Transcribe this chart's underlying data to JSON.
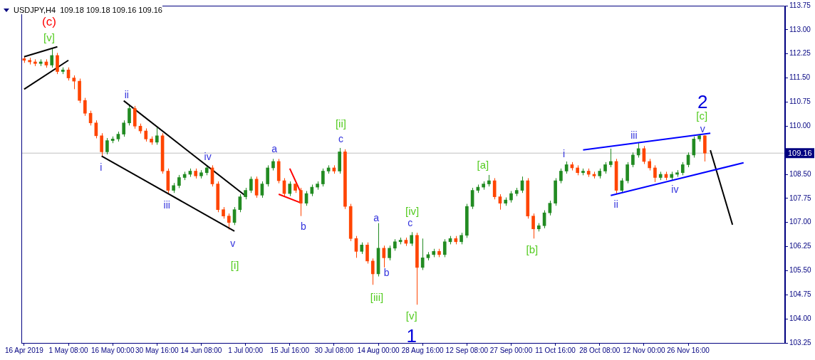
{
  "chart_data": {
    "type": "candlestick",
    "title": "USDJPY,H4  109.18 109.18 109.16 109.16",
    "categories": [
      "16 Apr 2019",
      null,
      null,
      null,
      null,
      null,
      null,
      null,
      "1 May 08:00",
      null,
      null,
      null,
      null,
      null,
      null,
      null,
      "16 May 00:00",
      null,
      null,
      null,
      null,
      null,
      null,
      null,
      "30 May 16:00",
      null,
      null,
      null,
      null,
      null,
      null,
      null,
      "14 Jun 08:00",
      null,
      null,
      null,
      null,
      null,
      null,
      null,
      "1 Jul 00:00",
      null,
      null,
      null,
      null,
      null,
      null,
      null,
      "15 Jul 16:00",
      null,
      null,
      null,
      null,
      null,
      null,
      null,
      "30 Jul 08:00",
      null,
      null,
      null,
      null,
      null,
      null,
      null,
      "14 Aug 00:00",
      null,
      null,
      null,
      null,
      null,
      null,
      null,
      "28 Aug 16:00",
      null,
      null,
      null,
      null,
      null,
      null,
      null,
      "12 Sep 08:00",
      null,
      null,
      null,
      null,
      null,
      null,
      null,
      "27 Sep 00:00",
      null,
      null,
      null,
      null,
      null,
      null,
      null,
      "11 Oct 16:00",
      null,
      null,
      null,
      null,
      null,
      null,
      null,
      "28 Oct 08:00",
      null,
      null,
      null,
      null,
      null,
      null,
      null,
      "12 Nov 00:00",
      null,
      null,
      null,
      null,
      null,
      null,
      null,
      "26 Nov 16:00",
      null,
      null,
      null,
      null,
      null,
      null,
      null,
      null,
      null,
      null,
      null,
      null,
      null,
      null,
      null,
      null,
      null
    ],
    "ohlc": [
      [
        112.1,
        112.18,
        111.97,
        112.05
      ],
      [
        112.05,
        112.13,
        111.92,
        112.0
      ],
      [
        112.0,
        112.08,
        111.87,
        111.95
      ],
      [
        111.95,
        112.08,
        111.87,
        112.0
      ],
      [
        112.0,
        112.08,
        111.82,
        111.9
      ],
      [
        111.9,
        112.4,
        111.82,
        112.2
      ],
      [
        112.2,
        112.28,
        111.62,
        111.7
      ],
      [
        111.7,
        111.83,
        111.62,
        111.75
      ],
      [
        111.75,
        111.83,
        111.42,
        111.5
      ],
      [
        111.5,
        111.58,
        111.15,
        111.4
      ],
      [
        111.4,
        111.48,
        110.72,
        110.8
      ],
      [
        110.8,
        110.88,
        110.32,
        110.4
      ],
      [
        110.4,
        110.48,
        110.02,
        110.1
      ],
      [
        110.1,
        110.18,
        109.62,
        109.7
      ],
      [
        109.7,
        109.78,
        109.07,
        109.2
      ],
      [
        109.2,
        109.63,
        109.12,
        109.55
      ],
      [
        109.55,
        109.68,
        109.47,
        109.6
      ],
      [
        109.6,
        109.83,
        109.52,
        109.75
      ],
      [
        109.75,
        110.18,
        109.67,
        110.1
      ],
      [
        110.1,
        110.68,
        110.02,
        110.55
      ],
      [
        110.55,
        110.63,
        109.92,
        110.0
      ],
      [
        110.0,
        110.08,
        109.77,
        109.85
      ],
      [
        109.85,
        109.93,
        109.52,
        109.6
      ],
      [
        109.6,
        109.68,
        109.42,
        109.5
      ],
      [
        109.5,
        109.95,
        109.42,
        109.7
      ],
      [
        109.7,
        109.78,
        108.52,
        108.6
      ],
      [
        108.6,
        108.68,
        107.88,
        108.0
      ],
      [
        108.0,
        108.23,
        107.92,
        108.15
      ],
      [
        108.15,
        108.48,
        108.07,
        108.4
      ],
      [
        108.4,
        108.58,
        108.32,
        108.5
      ],
      [
        108.5,
        108.68,
        108.42,
        108.6
      ],
      [
        108.6,
        108.68,
        108.37,
        108.45
      ],
      [
        108.45,
        108.63,
        108.37,
        108.55
      ],
      [
        108.55,
        108.78,
        108.47,
        108.7
      ],
      [
        108.7,
        108.78,
        108.12,
        108.2
      ],
      [
        108.2,
        108.28,
        107.32,
        107.4
      ],
      [
        107.4,
        107.48,
        107.12,
        107.2
      ],
      [
        107.2,
        107.28,
        106.78,
        107.0
      ],
      [
        107.0,
        107.48,
        106.92,
        107.4
      ],
      [
        107.4,
        107.88,
        107.32,
        107.8
      ],
      [
        107.8,
        108.08,
        107.72,
        108.0
      ],
      [
        108.0,
        108.43,
        107.92,
        108.35
      ],
      [
        108.35,
        108.43,
        107.77,
        107.85
      ],
      [
        107.85,
        108.28,
        107.77,
        108.2
      ],
      [
        108.2,
        108.78,
        108.12,
        108.7
      ],
      [
        108.7,
        108.98,
        108.62,
        108.9
      ],
      [
        108.9,
        108.98,
        108.22,
        108.3
      ],
      [
        108.3,
        108.38,
        107.82,
        107.9
      ],
      [
        107.9,
        108.28,
        107.82,
        108.2
      ],
      [
        108.2,
        108.28,
        107.92,
        108.0
      ],
      [
        108.0,
        108.08,
        107.2,
        107.6
      ],
      [
        107.6,
        107.98,
        107.52,
        107.9
      ],
      [
        107.9,
        108.18,
        107.82,
        108.1
      ],
      [
        108.1,
        108.28,
        108.02,
        108.2
      ],
      [
        108.2,
        108.68,
        108.12,
        108.6
      ],
      [
        108.6,
        108.78,
        108.52,
        108.7
      ],
      [
        108.7,
        108.78,
        108.52,
        108.6
      ],
      [
        108.6,
        109.32,
        108.52,
        109.2
      ],
      [
        109.2,
        109.28,
        107.42,
        107.5
      ],
      [
        107.5,
        107.58,
        106.42,
        106.5
      ],
      [
        106.5,
        106.58,
        105.9,
        106.1
      ],
      [
        106.1,
        106.38,
        106.02,
        106.3
      ],
      [
        106.3,
        106.38,
        105.72,
        105.8
      ],
      [
        105.8,
        105.88,
        105.06,
        105.4
      ],
      [
        105.4,
        106.98,
        105.32,
        106.2
      ],
      [
        106.2,
        106.28,
        105.6,
        105.9
      ],
      [
        105.9,
        106.28,
        105.82,
        106.2
      ],
      [
        106.2,
        106.48,
        106.12,
        106.4
      ],
      [
        106.4,
        106.53,
        106.32,
        106.45
      ],
      [
        106.45,
        106.53,
        106.27,
        106.35
      ],
      [
        106.35,
        106.7,
        106.27,
        106.6
      ],
      [
        106.6,
        106.68,
        104.44,
        105.6
      ],
      [
        105.6,
        106.5,
        105.52,
        105.9
      ],
      [
        105.9,
        106.08,
        105.82,
        106.0
      ],
      [
        106.0,
        106.18,
        105.92,
        106.1
      ],
      [
        106.1,
        106.18,
        105.92,
        106.0
      ],
      [
        106.0,
        106.48,
        105.92,
        106.4
      ],
      [
        106.4,
        106.58,
        106.32,
        106.5
      ],
      [
        106.5,
        106.58,
        106.32,
        106.4
      ],
      [
        106.4,
        106.68,
        106.32,
        106.6
      ],
      [
        106.6,
        107.58,
        106.52,
        107.5
      ],
      [
        107.5,
        108.08,
        107.42,
        108.0
      ],
      [
        108.0,
        108.18,
        107.92,
        108.1
      ],
      [
        108.1,
        108.28,
        108.02,
        108.2
      ],
      [
        108.2,
        108.48,
        108.12,
        108.3
      ],
      [
        108.3,
        108.38,
        107.72,
        107.8
      ],
      [
        107.8,
        107.88,
        107.4,
        107.6
      ],
      [
        107.6,
        107.78,
        107.52,
        107.7
      ],
      [
        107.7,
        107.98,
        107.62,
        107.9
      ],
      [
        107.9,
        108.08,
        107.82,
        108.0
      ],
      [
        108.0,
        108.43,
        107.92,
        108.3
      ],
      [
        108.3,
        108.38,
        107.12,
        107.2
      ],
      [
        107.2,
        107.28,
        106.5,
        106.8
      ],
      [
        106.8,
        106.98,
        106.72,
        106.9
      ],
      [
        106.9,
        107.38,
        106.82,
        107.3
      ],
      [
        107.3,
        107.68,
        107.22,
        107.6
      ],
      [
        107.6,
        108.38,
        107.52,
        108.3
      ],
      [
        108.3,
        108.68,
        108.22,
        108.6
      ],
      [
        108.6,
        108.9,
        108.52,
        108.8
      ],
      [
        108.8,
        108.88,
        108.62,
        108.7
      ],
      [
        108.7,
        108.78,
        108.47,
        108.55
      ],
      [
        108.55,
        108.68,
        108.47,
        108.6
      ],
      [
        108.6,
        108.68,
        108.42,
        108.5
      ],
      [
        108.5,
        108.58,
        108.37,
        108.45
      ],
      [
        108.45,
        108.68,
        108.37,
        108.6
      ],
      [
        108.6,
        108.88,
        108.52,
        108.8
      ],
      [
        108.8,
        109.3,
        108.72,
        108.9
      ],
      [
        108.9,
        108.98,
        107.88,
        108.0
      ],
      [
        108.0,
        108.38,
        107.92,
        108.3
      ],
      [
        108.3,
        108.88,
        108.22,
        108.8
      ],
      [
        108.8,
        109.18,
        108.72,
        109.1
      ],
      [
        109.1,
        109.47,
        109.02,
        109.3
      ],
      [
        109.3,
        109.38,
        108.82,
        108.9
      ],
      [
        108.9,
        108.98,
        108.62,
        108.7
      ],
      [
        108.7,
        108.78,
        108.26,
        108.4
      ],
      [
        108.4,
        108.58,
        108.32,
        108.5
      ],
      [
        108.5,
        108.58,
        108.32,
        108.4
      ],
      [
        108.4,
        108.58,
        108.32,
        108.5
      ],
      [
        108.5,
        108.63,
        108.42,
        108.55
      ],
      [
        108.55,
        108.88,
        108.47,
        108.8
      ],
      [
        108.8,
        109.18,
        108.72,
        109.1
      ],
      [
        109.1,
        109.68,
        109.02,
        109.6
      ],
      [
        109.6,
        109.74,
        109.52,
        109.7
      ],
      [
        109.7,
        109.72,
        108.9,
        109.16
      ],
      null,
      null,
      null,
      null,
      null,
      null,
      null,
      null,
      null,
      null,
      null,
      null,
      null,
      null
    ],
    "colors": [
      "#ff4500",
      "#ff4500",
      "#ff4500",
      "#228b22",
      "#ff4500",
      "#228b22",
      "#ff4500",
      "#228b22",
      "#ff4500",
      "#ff4500",
      "#ff4500",
      "#ff4500",
      "#ff4500",
      "#ff4500",
      "#ff4500",
      "#228b22",
      "#228b22",
      "#228b22",
      "#228b22",
      "#228b22",
      "#ff4500",
      "#ff4500",
      "#ff4500",
      "#ff4500",
      "#228b22",
      "#ff4500",
      "#ff4500",
      "#228b22",
      "#228b22",
      "#228b22",
      "#228b22",
      "#ff4500",
      "#228b22",
      "#228b22",
      "#ff4500",
      "#ff4500",
      "#ff4500",
      "#ff4500",
      "#228b22",
      "#228b22",
      "#228b22",
      "#228b22",
      "#ff4500",
      "#228b22",
      "#228b22",
      "#228b22",
      "#ff4500",
      "#ff4500",
      "#228b22",
      "#ff4500",
      "#ff4500",
      "#228b22",
      "#228b22",
      "#228b22",
      "#228b22",
      "#228b22",
      "#ff4500",
      "#228b22",
      "#ff4500",
      "#ff4500",
      "#ff4500",
      "#228b22",
      "#ff4500",
      "#ff4500",
      "#228b22",
      "#ff4500",
      "#228b22",
      "#228b22",
      "#228b22",
      "#ff4500",
      "#228b22",
      "#ff4500",
      "#228b22",
      "#228b22",
      "#228b22",
      "#ff4500",
      "#228b22",
      "#228b22",
      "#ff4500",
      "#228b22",
      "#228b22",
      "#228b22",
      "#228b22",
      "#228b22",
      "#228b22",
      "#ff4500",
      "#ff4500",
      "#228b22",
      "#228b22",
      "#228b22",
      "#228b22",
      "#ff4500",
      "#ff4500",
      "#228b22",
      "#228b22",
      "#228b22",
      "#228b22",
      "#228b22",
      "#228b22",
      "#ff4500",
      "#ff4500",
      "#228b22",
      "#ff4500",
      "#ff4500",
      "#228b22",
      "#228b22",
      "#228b22",
      "#ff4500",
      "#228b22",
      "#228b22",
      "#228b22",
      "#228b22",
      "#ff4500",
      "#ff4500",
      "#ff4500",
      "#228b22",
      "#ff4500",
      "#228b22",
      "#228b22",
      "#228b22",
      "#228b22",
      "#228b22",
      "#228b22",
      "#ff4500",
      null,
      null,
      null,
      null,
      null,
      null,
      null,
      null,
      null,
      null,
      null,
      null,
      null,
      null
    ],
    "series": [
      {
        "type": "line",
        "color": "#000000",
        "values": [
          112.16,
          null,
          null,
          null,
          null,
          null,
          112.47,
          null,
          null,
          null,
          null,
          null,
          null,
          null,
          null,
          null,
          null,
          null,
          null,
          null,
          null,
          null,
          null,
          null,
          null,
          null,
          null,
          null,
          null,
          null,
          null,
          null,
          null,
          null,
          null,
          null,
          null,
          null,
          null,
          null,
          null,
          null,
          null,
          null,
          null,
          null,
          null,
          null,
          null,
          null,
          null,
          null,
          null,
          null,
          null,
          null,
          null,
          null,
          null,
          null,
          null,
          null,
          null,
          null,
          null,
          null,
          null,
          null,
          null,
          null,
          null,
          null,
          null,
          null,
          null,
          null,
          null,
          null,
          null,
          null,
          null,
          null,
          null,
          null,
          null,
          null,
          null,
          null,
          null,
          null,
          null,
          null,
          null,
          null,
          null,
          null,
          null,
          null,
          null,
          null,
          null,
          null,
          null,
          null,
          null,
          null,
          null,
          null,
          null,
          null,
          null,
          null,
          null,
          null,
          null,
          null,
          null,
          null,
          null,
          null,
          null,
          null,
          null,
          null,
          null,
          null,
          null,
          null,
          null,
          null,
          null,
          null,
          null,
          null,
          null,
          null,
          null,
          null
        ]
      },
      {
        "type": "line",
        "color": "#000000",
        "values": [
          111.15,
          null,
          null,
          null,
          null,
          null,
          null,
          null,
          112.05,
          null,
          null,
          null,
          null,
          null,
          null,
          null,
          null,
          null,
          null,
          null,
          null,
          null,
          null,
          null,
          null,
          null,
          null,
          null,
          null,
          null,
          null,
          null,
          null,
          null,
          null,
          null,
          null,
          null,
          null,
          null,
          null,
          null,
          null,
          null,
          null,
          null,
          null,
          null,
          null,
          null,
          null,
          null,
          null,
          null,
          null,
          null,
          null,
          null,
          null,
          null,
          null,
          null,
          null,
          null,
          null,
          null,
          null,
          null,
          null,
          null,
          null,
          null,
          null,
          null,
          null,
          null,
          null,
          null,
          null,
          null,
          null,
          null,
          null,
          null,
          null,
          null,
          null,
          null,
          null,
          null,
          null,
          null,
          null,
          null,
          null,
          null,
          null,
          null,
          null,
          null,
          null,
          null,
          null,
          null,
          null,
          null,
          null,
          null,
          null,
          null,
          null,
          null,
          null,
          null,
          null,
          null,
          null,
          null,
          null,
          null,
          null,
          null,
          null,
          null,
          null,
          null,
          null,
          null,
          null,
          null,
          null,
          null,
          null,
          null,
          null,
          null,
          null,
          null
        ]
      },
      {
        "type": "line",
        "color": "#000000",
        "values": [
          null,
          null,
          null,
          null,
          null,
          null,
          null,
          null,
          null,
          null,
          null,
          null,
          null,
          null,
          null,
          null,
          null,
          null,
          110.79,
          null,
          null,
          null,
          null,
          null,
          null,
          null,
          null,
          null,
          null,
          null,
          null,
          null,
          null,
          null,
          null,
          null,
          null,
          null,
          null,
          null,
          107.83,
          null,
          null,
          null,
          null,
          null,
          null,
          null,
          null,
          null,
          null,
          null,
          null,
          null,
          null,
          null,
          null,
          null,
          null,
          null,
          null,
          null,
          null,
          null,
          null,
          null,
          null,
          null,
          null,
          null,
          null,
          null,
          null,
          null,
          null,
          null,
          null,
          null,
          null,
          null,
          null,
          null,
          null,
          null,
          null,
          null,
          null,
          null,
          null,
          null,
          null,
          null,
          null,
          null,
          null,
          null,
          null,
          null,
          null,
          null,
          null,
          null,
          null,
          null,
          null,
          null,
          null,
          null,
          null,
          null,
          null,
          null,
          null,
          null,
          null,
          null,
          null,
          null,
          null,
          null,
          null,
          null,
          null,
          null,
          null,
          null,
          null,
          null,
          null,
          null,
          null,
          null,
          null,
          null,
          null,
          null,
          null,
          null
        ]
      },
      {
        "type": "line",
        "color": "#000000",
        "values": [
          null,
          null,
          null,
          null,
          null,
          null,
          null,
          null,
          null,
          null,
          null,
          null,
          null,
          null,
          109.07,
          null,
          null,
          null,
          null,
          null,
          null,
          null,
          null,
          null,
          null,
          null,
          null,
          null,
          null,
          null,
          null,
          null,
          null,
          null,
          null,
          null,
          null,
          null,
          106.73,
          null,
          null,
          null,
          null,
          null,
          null,
          null,
          null,
          null,
          null,
          null,
          null,
          null,
          null,
          null,
          null,
          null,
          null,
          null,
          null,
          null,
          null,
          null,
          null,
          null,
          null,
          null,
          null,
          null,
          null,
          null,
          null,
          null,
          null,
          null,
          null,
          null,
          null,
          null,
          null,
          null,
          null,
          null,
          null,
          null,
          null,
          null,
          null,
          null,
          null,
          null,
          null,
          null,
          null,
          null,
          null,
          null,
          null,
          null,
          null,
          null,
          null,
          null,
          null,
          null,
          null,
          null,
          null,
          null,
          null,
          null,
          null,
          null,
          null,
          null,
          null,
          null,
          null,
          null,
          null,
          null,
          null,
          null,
          null,
          null,
          null,
          null,
          null,
          null,
          null,
          null,
          null,
          null,
          null,
          null,
          null,
          null,
          null,
          null
        ]
      },
      {
        "type": "line",
        "color": "#ff0000",
        "values": [
          null,
          null,
          null,
          null,
          null,
          null,
          null,
          null,
          null,
          null,
          null,
          null,
          null,
          null,
          null,
          null,
          null,
          null,
          null,
          null,
          null,
          null,
          null,
          null,
          null,
          null,
          null,
          null,
          null,
          null,
          null,
          null,
          null,
          null,
          null,
          null,
          null,
          null,
          null,
          null,
          null,
          null,
          null,
          null,
          null,
          null,
          107.88,
          null,
          null,
          null,
          107.61,
          null,
          null,
          null,
          null,
          null,
          null,
          null,
          null,
          null,
          null,
          null,
          null,
          null,
          null,
          null,
          null,
          null,
          null,
          null,
          null,
          null,
          null,
          null,
          null,
          null,
          null,
          null,
          null,
          null,
          null,
          null,
          null,
          null,
          null,
          null,
          null,
          null,
          null,
          null,
          null,
          null,
          null,
          null,
          null,
          null,
          null,
          null,
          null,
          null,
          null,
          null,
          null,
          null,
          null,
          null,
          null,
          null,
          null,
          null,
          null,
          null,
          null,
          null,
          null,
          null,
          null,
          null,
          null,
          null,
          null,
          null,
          null,
          null,
          null,
          null,
          null,
          null,
          null,
          null,
          null,
          null,
          null,
          null,
          null,
          null,
          null,
          null
        ]
      },
      {
        "type": "line",
        "color": "#ff0000",
        "values": [
          null,
          null,
          null,
          null,
          null,
          null,
          null,
          null,
          null,
          null,
          null,
          null,
          null,
          null,
          null,
          null,
          null,
          null,
          null,
          null,
          null,
          null,
          null,
          null,
          null,
          null,
          null,
          null,
          null,
          null,
          null,
          null,
          null,
          null,
          null,
          null,
          null,
          null,
          null,
          null,
          null,
          null,
          null,
          null,
          null,
          null,
          null,
          null,
          108.68,
          null,
          107.93,
          null,
          null,
          null,
          null,
          null,
          null,
          null,
          null,
          null,
          null,
          null,
          null,
          null,
          null,
          null,
          null,
          null,
          null,
          null,
          null,
          null,
          null,
          null,
          null,
          null,
          null,
          null,
          null,
          null,
          null,
          null,
          null,
          null,
          null,
          null,
          null,
          null,
          null,
          null,
          null,
          null,
          null,
          null,
          null,
          null,
          null,
          null,
          null,
          null,
          null,
          null,
          null,
          null,
          null,
          null,
          null,
          null,
          null,
          null,
          null,
          null,
          null,
          null,
          null,
          null,
          null,
          null,
          null,
          null,
          null,
          null,
          null,
          null,
          null,
          null,
          null,
          null,
          null,
          null,
          null,
          null,
          null,
          null,
          null,
          null,
          null,
          null
        ]
      },
      {
        "type": "line",
        "color": "#0000ff",
        "values": [
          null,
          null,
          null,
          null,
          null,
          null,
          null,
          null,
          null,
          null,
          null,
          null,
          null,
          null,
          null,
          null,
          null,
          null,
          null,
          null,
          null,
          null,
          null,
          null,
          null,
          null,
          null,
          null,
          null,
          null,
          null,
          null,
          null,
          null,
          null,
          null,
          null,
          null,
          null,
          null,
          null,
          null,
          null,
          null,
          null,
          null,
          null,
          null,
          null,
          null,
          null,
          null,
          null,
          null,
          null,
          null,
          null,
          null,
          null,
          null,
          null,
          null,
          null,
          null,
          null,
          null,
          null,
          null,
          null,
          null,
          null,
          null,
          null,
          null,
          null,
          null,
          null,
          null,
          null,
          null,
          null,
          null,
          null,
          null,
          null,
          null,
          null,
          null,
          null,
          null,
          null,
          null,
          null,
          null,
          null,
          null,
          null,
          null,
          null,
          null,
          null,
          109.26,
          null,
          null,
          null,
          null,
          null,
          null,
          null,
          null,
          null,
          null,
          null,
          null,
          null,
          null,
          null,
          null,
          null,
          null,
          null,
          null,
          null,
          null,
          109.78,
          null,
          null,
          null,
          null,
          null,
          null,
          null,
          null,
          null,
          null,
          null,
          null,
          null
        ]
      },
      {
        "type": "line",
        "color": "#0000ff",
        "values": [
          null,
          null,
          null,
          null,
          null,
          null,
          null,
          null,
          null,
          null,
          null,
          null,
          null,
          null,
          null,
          null,
          null,
          null,
          null,
          null,
          null,
          null,
          null,
          null,
          null,
          null,
          null,
          null,
          null,
          null,
          null,
          null,
          null,
          null,
          null,
          null,
          null,
          null,
          null,
          null,
          null,
          null,
          null,
          null,
          null,
          null,
          null,
          null,
          null,
          null,
          null,
          null,
          null,
          null,
          null,
          null,
          null,
          null,
          null,
          null,
          null,
          null,
          null,
          null,
          null,
          null,
          null,
          null,
          null,
          null,
          null,
          null,
          null,
          null,
          null,
          null,
          null,
          null,
          null,
          null,
          null,
          null,
          null,
          null,
          null,
          null,
          null,
          null,
          null,
          null,
          null,
          null,
          null,
          null,
          null,
          null,
          null,
          null,
          null,
          null,
          null,
          null,
          null,
          null,
          null,
          null,
          107.84,
          null,
          null,
          null,
          null,
          null,
          null,
          null,
          null,
          null,
          null,
          null,
          null,
          null,
          null,
          null,
          null,
          null,
          null,
          null,
          null,
          null,
          null,
          null,
          108.86,
          null,
          null,
          null,
          null,
          null,
          null,
          null
        ]
      },
      {
        "type": "line",
        "color": "#000000",
        "values": [
          null,
          null,
          null,
          null,
          null,
          null,
          null,
          null,
          null,
          null,
          null,
          null,
          null,
          null,
          null,
          null,
          null,
          null,
          null,
          null,
          null,
          null,
          null,
          null,
          null,
          null,
          null,
          null,
          null,
          null,
          null,
          null,
          null,
          null,
          null,
          null,
          null,
          null,
          null,
          null,
          null,
          null,
          null,
          null,
          null,
          null,
          null,
          null,
          null,
          null,
          null,
          null,
          null,
          null,
          null,
          null,
          null,
          null,
          null,
          null,
          null,
          null,
          null,
          null,
          null,
          null,
          null,
          null,
          null,
          null,
          null,
          null,
          null,
          null,
          null,
          null,
          null,
          null,
          null,
          null,
          null,
          null,
          null,
          null,
          null,
          null,
          null,
          null,
          null,
          null,
          null,
          null,
          null,
          null,
          null,
          null,
          null,
          null,
          null,
          null,
          null,
          null,
          null,
          null,
          null,
          null,
          null,
          null,
          null,
          null,
          null,
          null,
          null,
          null,
          null,
          null,
          null,
          null,
          null,
          null,
          null,
          null,
          null,
          null,
          109.25,
          null,
          null,
          null,
          106.93,
          null,
          null,
          null,
          null,
          null,
          null,
          null,
          null,
          null
        ]
      }
    ],
    "ylim": [
      103.25,
      113.75
    ],
    "yticks": [
      {
        "value": 103.25,
        "label": "103.25"
      },
      {
        "value": 104,
        "label": "104.00"
      },
      {
        "value": 104.75,
        "label": "104.75"
      },
      {
        "value": 105.5,
        "label": "105.50"
      },
      {
        "value": 106.25,
        "label": "106.25"
      },
      {
        "value": 107,
        "label": "107.00"
      },
      {
        "value": 107.75,
        "label": "107.75"
      },
      {
        "value": 108.5,
        "label": "108.50"
      },
      {
        "value": 110,
        "label": "110.00"
      },
      {
        "value": 110.75,
        "label": "110.75"
      },
      {
        "value": 111.5,
        "label": "111.50"
      },
      {
        "value": 112.25,
        "label": "112.25"
      },
      {
        "value": 113,
        "label": "113.00"
      },
      {
        "value": 113.75,
        "label": "113.75"
      }
    ],
    "ref_lines": [
      {
        "axis": "y",
        "value": 109.16,
        "label": "109.16",
        "color": "#c0c0c0"
      }
    ],
    "annotations": [
      "(c)",
      "[v]",
      "i",
      "ii",
      "iii",
      "iv",
      "v",
      "[i]",
      "a",
      "b",
      "[ii]",
      "c",
      "a",
      "b",
      "[iii]",
      "[iv]",
      "c",
      "[v]",
      "1",
      "[a]",
      "[b]",
      "i",
      "ii",
      "iii",
      "iv",
      "v",
      "[c]",
      "2"
    ],
    "grid": false,
    "legend": false
  }
}
